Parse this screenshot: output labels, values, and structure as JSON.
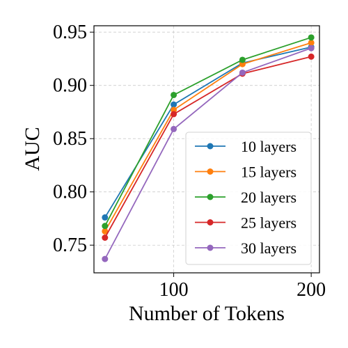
{
  "chart_data": {
    "type": "line",
    "xlabel": "Number of Tokens",
    "ylabel": "AUC",
    "x": [
      50,
      100,
      150,
      200
    ],
    "xlim": [
      42,
      206
    ],
    "ylim": [
      0.724,
      0.956
    ],
    "xticks": [
      100,
      200
    ],
    "yticks": [
      0.75,
      0.8,
      0.85,
      0.9,
      0.95
    ],
    "xtick_labels": [
      "100",
      "200"
    ],
    "ytick_labels": [
      "0.75",
      "0.80",
      "0.85",
      "0.90",
      "0.95"
    ],
    "grid": true,
    "legend_position": "lower-right",
    "series": [
      {
        "name": "10 layers",
        "color": "#1f77b4",
        "values": [
          0.776,
          0.882,
          0.921,
          0.936
        ]
      },
      {
        "name": "15 layers",
        "color": "#ff7f0e",
        "values": [
          0.763,
          0.877,
          0.92,
          0.94
        ]
      },
      {
        "name": "20 layers",
        "color": "#2ca02c",
        "values": [
          0.768,
          0.891,
          0.924,
          0.945
        ]
      },
      {
        "name": "25 layers",
        "color": "#d62728",
        "values": [
          0.757,
          0.873,
          0.911,
          0.927
        ]
      },
      {
        "name": "30 layers",
        "color": "#9467bd",
        "values": [
          0.737,
          0.859,
          0.912,
          0.935
        ]
      }
    ]
  }
}
